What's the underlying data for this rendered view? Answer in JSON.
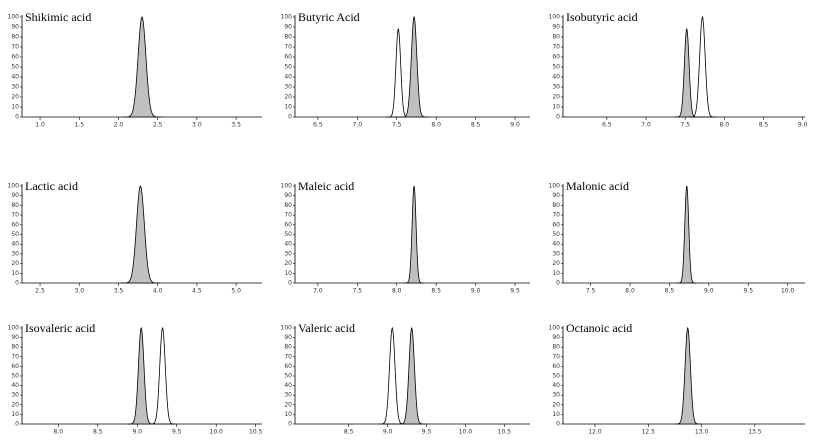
{
  "chart_data": [
    {
      "type": "chromatogram",
      "title": "Shikimic  acid",
      "xlim": [
        0.77,
        3.83
      ],
      "xticks": [
        {
          "value": 1,
          "label": "1.0"
        },
        1.5,
        {
          "value": 2,
          "label": "2.0"
        },
        2.5,
        {
          "value": 3,
          "label": "3.0"
        },
        3.5
      ],
      "ylim": [
        0,
        100
      ],
      "yticks": [
        0,
        10,
        20,
        30,
        40,
        50,
        60,
        70,
        80,
        90,
        100
      ],
      "peaks": [
        {
          "x": 2.3,
          "value": 100,
          "width": 0.05,
          "filled": true
        }
      ]
    },
    {
      "type": "chromatogram",
      "title": "Butyric Acid",
      "xlim": [
        6.21,
        9.19
      ],
      "xticks": [
        6.5,
        {
          "value": 7,
          "label": "7.0"
        },
        7.5,
        {
          "value": 8,
          "label": "8.0"
        },
        8.5,
        {
          "value": 9,
          "label": "9.0"
        }
      ],
      "ylim": [
        0,
        100
      ],
      "yticks": [
        0,
        10,
        20,
        30,
        40,
        50,
        60,
        70,
        80,
        90,
        100
      ],
      "peaks": [
        {
          "x": 7.52,
          "value": 88,
          "width": 0.03,
          "filled": false
        },
        {
          "x": 7.72,
          "value": 100,
          "width": 0.035,
          "filled": true
        }
      ]
    },
    {
      "type": "chromatogram",
      "title": "Isobutyric acid",
      "xlim": [
        5.94,
        9.03
      ],
      "xticks": [
        6.5,
        {
          "value": 7,
          "label": "7.0"
        },
        7.5,
        {
          "value": 8,
          "label": "8.0"
        },
        8.5,
        {
          "value": 9,
          "label": "9.0"
        }
      ],
      "ylim": [
        0,
        100
      ],
      "yticks": [
        0,
        10,
        20,
        30,
        40,
        50,
        60,
        70,
        80,
        90,
        100
      ],
      "peaks": [
        {
          "x": 7.52,
          "value": 88,
          "width": 0.03,
          "filled": true
        },
        {
          "x": 7.72,
          "value": 100,
          "width": 0.035,
          "filled": false
        }
      ]
    },
    {
      "type": "chromatogram",
      "title": "Lactic  acid",
      "xlim": [
        2.27,
        5.33
      ],
      "xticks": [
        2.5,
        {
          "value": 3,
          "label": "3.0"
        },
        3.5,
        {
          "value": 4,
          "label": "4.0"
        },
        4.5,
        {
          "value": 5,
          "label": "5.0"
        }
      ],
      "ylim": [
        0,
        100
      ],
      "yticks": [
        0,
        10,
        20,
        30,
        40,
        50,
        60,
        70,
        80,
        90,
        100
      ],
      "peaks": [
        {
          "x": 3.78,
          "value": 100,
          "width": 0.05,
          "filled": true
        }
      ]
    },
    {
      "type": "chromatogram",
      "title": "Maleic  acid",
      "xlim": [
        6.71,
        9.69
      ],
      "xticks": [
        {
          "value": 7,
          "label": "7.0"
        },
        7.5,
        {
          "value": 8,
          "label": "8.0"
        },
        8.5,
        {
          "value": 9,
          "label": "9.0"
        },
        9.5
      ],
      "ylim": [
        0,
        100
      ],
      "yticks": [
        0,
        10,
        20,
        30,
        40,
        50,
        60,
        70,
        80,
        90,
        100
      ],
      "peaks": [
        {
          "x": 8.22,
          "value": 100,
          "width": 0.025,
          "filled": true
        }
      ]
    },
    {
      "type": "chromatogram",
      "title": "Malonic  acid",
      "xlim": [
        7.15,
        10.22
      ],
      "xticks": [
        7.5,
        {
          "value": 8,
          "label": "8.0"
        },
        8.5,
        {
          "value": 9,
          "label": "9.0"
        },
        9.5,
        {
          "value": 10,
          "label": "10.0"
        }
      ],
      "ylim": [
        0,
        100
      ],
      "yticks": [
        0,
        10,
        20,
        30,
        40,
        50,
        60,
        70,
        80,
        90,
        100
      ],
      "peaks": [
        {
          "x": 8.72,
          "value": 100,
          "width": 0.025,
          "filled": true
        }
      ]
    },
    {
      "type": "chromatogram",
      "title": "Isovaleric acid",
      "xlim": [
        7.54,
        10.58
      ],
      "xticks": [
        {
          "value": 8,
          "label": "8.0"
        },
        8.5,
        {
          "value": 9,
          "label": "9.0"
        },
        9.5,
        {
          "value": 10,
          "label": "10.0"
        },
        10.5
      ],
      "ylim": [
        0,
        100
      ],
      "yticks": [
        0,
        10,
        20,
        30,
        40,
        50,
        60,
        70,
        80,
        90,
        100
      ],
      "peaks": [
        {
          "x": 9.05,
          "value": 100,
          "width": 0.035,
          "filled": true
        },
        {
          "x": 9.32,
          "value": 100,
          "width": 0.035,
          "filled": false
        }
      ]
    },
    {
      "type": "chromatogram",
      "title": "Valeric  acid",
      "xlim": [
        7.81,
        10.83
      ],
      "xticks": [
        8.5,
        {
          "value": 9,
          "label": "9.0"
        },
        9.5,
        {
          "value": 10,
          "label": "10.0"
        },
        10.5
      ],
      "ylim": [
        0,
        100
      ],
      "yticks": [
        0,
        10,
        20,
        30,
        40,
        50,
        60,
        70,
        80,
        90,
        100
      ],
      "peaks": [
        {
          "x": 9.06,
          "value": 100,
          "width": 0.035,
          "filled": false
        },
        {
          "x": 9.31,
          "value": 100,
          "width": 0.035,
          "filled": true
        }
      ]
    },
    {
      "type": "chromatogram",
      "title": "Octanoic acid",
      "xlim": [
        11.7,
        13.97
      ],
      "xticks": [
        {
          "value": 12,
          "label": "12.0"
        },
        12.5,
        {
          "value": 13,
          "label": "13.0"
        },
        13.5
      ],
      "ylim": [
        0,
        100
      ],
      "yticks": [
        0,
        10,
        20,
        30,
        40,
        50,
        60,
        70,
        80,
        90,
        100
      ],
      "peaks": [
        {
          "x": 12.87,
          "value": 100,
          "width": 0.025,
          "filled": true
        }
      ]
    }
  ]
}
